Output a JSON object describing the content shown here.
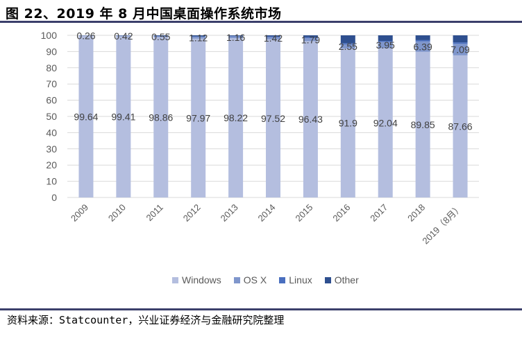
{
  "header": {
    "title": "图 22、2019 年 8 月中国桌面操作系统市场"
  },
  "footer": {
    "source": "资料来源：Statcounter，兴业证券经济与金融研究院整理"
  },
  "colors": {
    "windows": "#b4bedf",
    "osx": "#7f96cc",
    "linux": "#4a6fbf",
    "other": "#2e4f8f",
    "rule": "#3b3f6b",
    "grid": "#d9d9d9",
    "axis_text": "#595959"
  },
  "legend": [
    {
      "label": "Windows",
      "color": "#b4bedf"
    },
    {
      "label": "OS X",
      "color": "#7f96cc"
    },
    {
      "label": "Linux",
      "color": "#4a6fbf"
    },
    {
      "label": "Other",
      "color": "#2e4f8f"
    }
  ],
  "chart_data": {
    "type": "bar",
    "stacked": true,
    "title": "图 22、2019 年 8 月中国桌面操作系统市场",
    "xlabel": "",
    "ylabel": "",
    "ylim": [
      0,
      100
    ],
    "yticks": [
      0,
      10,
      20,
      30,
      40,
      50,
      60,
      70,
      80,
      90,
      100
    ],
    "grid": true,
    "legend_position": "bottom",
    "categories": [
      "2009",
      "2010",
      "2011",
      "2012",
      "2013",
      "2014",
      "2015",
      "2016",
      "2017",
      "2018",
      "2019（8月）"
    ],
    "series": [
      {
        "name": "Windows",
        "values": [
          99.64,
          99.41,
          98.86,
          97.97,
          98.22,
          97.52,
          96.43,
          91.9,
          92.04,
          89.85,
          87.66
        ]
      },
      {
        "name": "OS X",
        "values": [
          0.26,
          0.42,
          0.55,
          1.12,
          1.16,
          1.42,
          1.79,
          2.55,
          3.95,
          6.39,
          7.09
        ]
      },
      {
        "name": "Linux",
        "values": [
          0.05,
          0.07,
          0.2,
          0.3,
          0.25,
          0.4,
          0.6,
          0.8,
          0.6,
          0.8,
          0.9
        ]
      },
      {
        "name": "Other",
        "values": [
          0.05,
          0.1,
          0.39,
          0.61,
          0.37,
          0.66,
          1.18,
          4.75,
          3.41,
          2.96,
          4.35
        ]
      }
    ],
    "data_labels": {
      "Windows": [
        "99.64",
        "99.41",
        "98.86",
        "97.97",
        "98.22",
        "97.52",
        "96.43",
        "91.9",
        "92.04",
        "89.85",
        "87.66"
      ],
      "OS X": [
        "0.26",
        "0.42",
        "0.55",
        "1.12",
        "1.16",
        "1.42",
        "1.79",
        "2.55",
        "3.95",
        "6.39",
        "7.09"
      ]
    }
  }
}
